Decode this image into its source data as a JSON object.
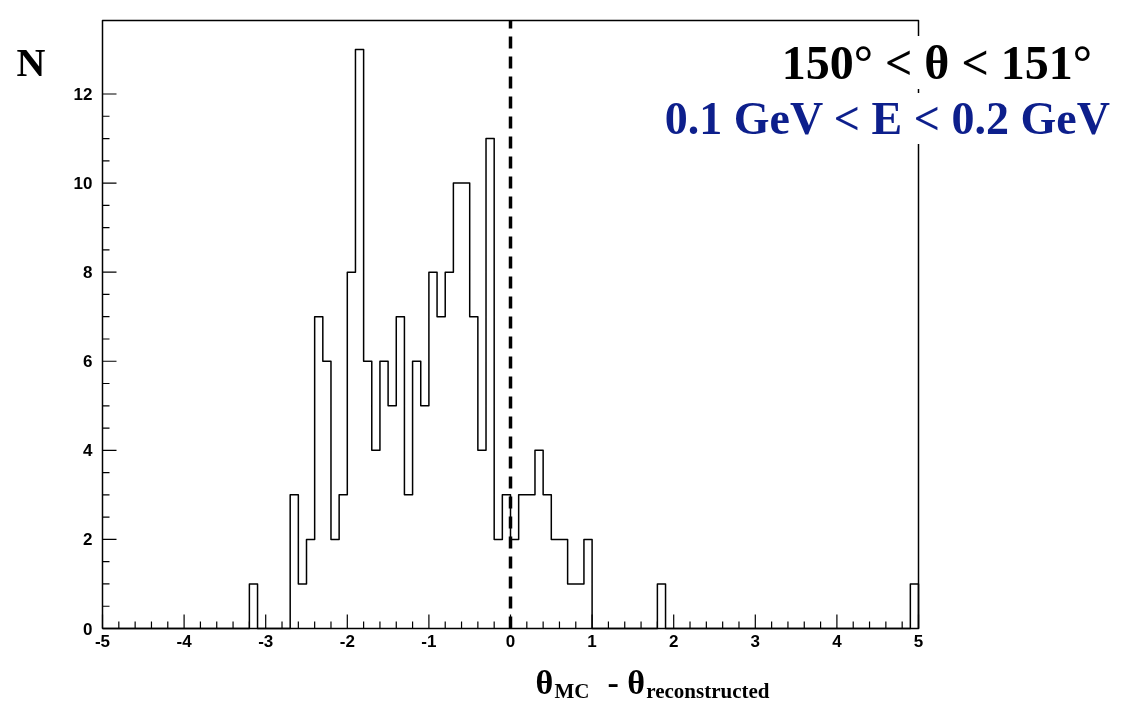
{
  "chart_data": {
    "type": "histogram",
    "title": "150° < θ < 151°",
    "subtitle": "0.1 GeV < E < 0.2 GeV",
    "xlabel": "θ$_{MC}$  - θ$_{reconstructed}$",
    "ylabel": "N",
    "bins": [
      -5.0,
      -4.9,
      -4.8,
      -4.7,
      -4.6,
      -4.5,
      -4.4,
      -4.3,
      -4.2,
      -4.1,
      -4.0,
      -3.9,
      -3.8,
      -3.7,
      -3.6,
      -3.5,
      -3.4,
      -3.3,
      -3.2,
      -3.1,
      -3.0,
      -2.9,
      -2.8,
      -2.7,
      -2.6,
      -2.5,
      -2.4,
      -2.3,
      -2.2,
      -2.1,
      -2.0,
      -1.9,
      -1.8,
      -1.7,
      -1.6,
      -1.5,
      -1.4,
      -1.3,
      -1.2,
      -1.1,
      -1.0,
      -0.9,
      -0.8,
      -0.7,
      -0.6,
      -0.5,
      -0.4,
      -0.3,
      -0.2,
      -0.1,
      0.0,
      0.1,
      0.2,
      0.3,
      0.4,
      0.5,
      0.6,
      0.7,
      0.8,
      0.9,
      1.0,
      1.1,
      1.2,
      1.3,
      1.4,
      1.5,
      1.6,
      1.7,
      1.8,
      1.9,
      2.0,
      2.1,
      2.2,
      2.3,
      2.4,
      2.5,
      2.6,
      2.7,
      2.8,
      2.9,
      3.0,
      3.1,
      3.2,
      3.3,
      3.4,
      3.5,
      3.6,
      3.7,
      3.8,
      3.9,
      4.0,
      4.1,
      4.2,
      4.3,
      4.4,
      4.5,
      4.6,
      4.7,
      4.8,
      4.9,
      5.0
    ],
    "values": [
      0,
      0,
      0,
      0,
      0,
      0,
      0,
      0,
      0,
      0,
      0,
      0,
      0,
      0,
      0,
      0,
      0,
      0,
      1,
      0,
      0,
      0,
      0,
      3,
      1,
      2,
      7,
      6,
      2,
      3,
      8,
      13,
      6,
      4,
      6,
      5,
      7,
      3,
      6,
      5,
      8,
      7,
      8,
      10,
      10,
      7,
      4,
      11,
      2,
      3,
      2,
      3,
      3,
      4,
      3,
      2,
      2,
      1,
      1,
      2,
      0,
      0,
      0,
      0,
      0,
      0,
      0,
      0,
      1,
      0,
      0,
      0,
      0,
      0,
      0,
      0,
      0,
      0,
      0,
      0,
      0,
      0,
      0,
      0,
      0,
      0,
      0,
      0,
      0,
      0,
      0,
      0,
      0,
      0,
      0,
      0,
      0,
      0,
      0,
      1
    ],
    "color": "#000000",
    "xlim": [
      -5,
      5
    ],
    "ylim": [
      0,
      13.65
    ],
    "xticks": [
      -5,
      -4,
      -3,
      -2,
      -1,
      0,
      1,
      2,
      3,
      4,
      5
    ],
    "yticks": [
      0,
      2,
      4,
      6,
      8,
      10,
      12
    ],
    "ref_lines": [
      {
        "axis": "x",
        "value": 0,
        "color": "#000000",
        "line_style": "dashed"
      }
    ],
    "grid": false
  }
}
